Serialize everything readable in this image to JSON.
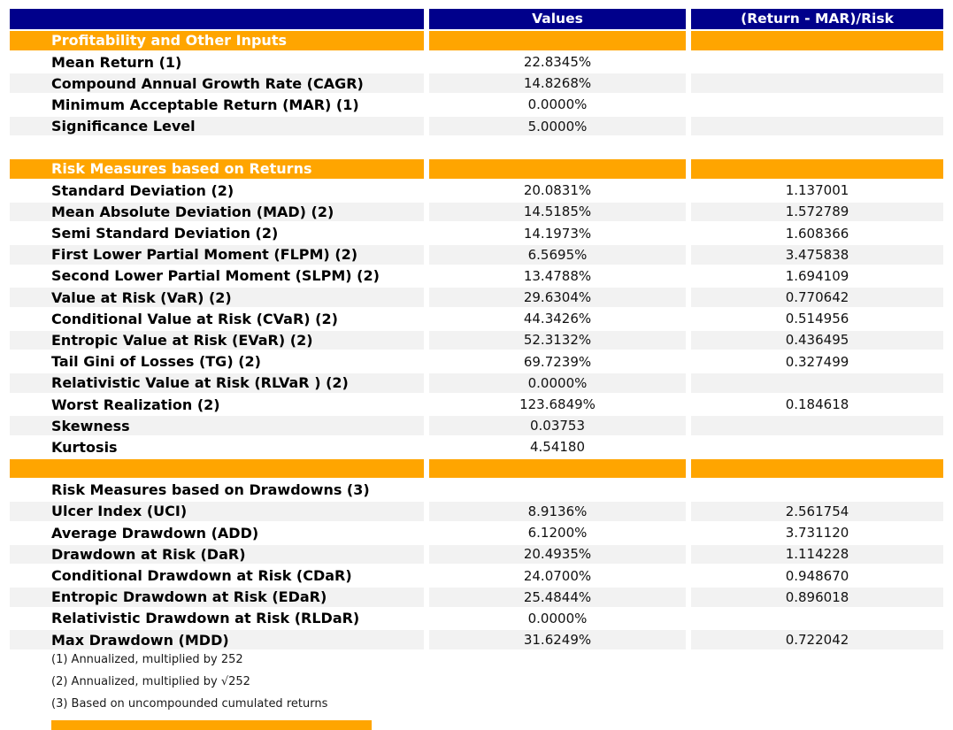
{
  "chart_data": {
    "type": "table",
    "title": "Portfolio risk measures table",
    "columns": [
      "",
      "Values",
      "(Return - MAR)/Risk"
    ],
    "rows": [
      {
        "kind": "section",
        "label": "Profitability and Other Inputs",
        "value": "",
        "ratio": "",
        "shade": false
      },
      {
        "kind": "data",
        "label": "Mean Return (1)",
        "value": "22.8345%",
        "ratio": "",
        "shade": false
      },
      {
        "kind": "data",
        "label": "Compound Annual Growth Rate (CAGR)",
        "value": "14.8268%",
        "ratio": "",
        "shade": true
      },
      {
        "kind": "data",
        "label": "Minimum Acceptable Return (MAR) (1)",
        "value": "0.0000%",
        "ratio": "",
        "shade": false
      },
      {
        "kind": "data",
        "label": "Significance Level",
        "value": "5.0000%",
        "ratio": "",
        "shade": true
      },
      {
        "kind": "blank",
        "label": "",
        "value": "",
        "ratio": "",
        "shade": false
      },
      {
        "kind": "section",
        "label": "Risk Measures based on Returns",
        "value": "",
        "ratio": "",
        "shade": false
      },
      {
        "kind": "data",
        "label": "Standard Deviation (2)",
        "value": "20.0831%",
        "ratio": "1.137001",
        "shade": false
      },
      {
        "kind": "data",
        "label": "Mean Absolute Deviation (MAD) (2)",
        "value": "14.5185%",
        "ratio": "1.572789",
        "shade": true
      },
      {
        "kind": "data",
        "label": "Semi Standard Deviation (2)",
        "value": "14.1973%",
        "ratio": "1.608366",
        "shade": false
      },
      {
        "kind": "data",
        "label": "First Lower Partial Moment (FLPM) (2)",
        "value": "6.5695%",
        "ratio": "3.475838",
        "shade": true
      },
      {
        "kind": "data",
        "label": "Second Lower Partial Moment (SLPM) (2)",
        "value": "13.4788%",
        "ratio": "1.694109",
        "shade": false
      },
      {
        "kind": "data",
        "label": "Value at Risk (VaR) (2)",
        "value": "29.6304%",
        "ratio": "0.770642",
        "shade": true
      },
      {
        "kind": "data",
        "label": "Conditional Value at Risk (CVaR) (2)",
        "value": "44.3426%",
        "ratio": "0.514956",
        "shade": false
      },
      {
        "kind": "data",
        "label": "Entropic Value at Risk (EVaR) (2)",
        "value": "52.3132%",
        "ratio": "0.436495",
        "shade": true
      },
      {
        "kind": "data",
        "label": "Tail Gini of Losses (TG) (2)",
        "value": "69.7239%",
        "ratio": "0.327499",
        "shade": false
      },
      {
        "kind": "data",
        "label": "Relativistic Value at Risk (RLVaR ) (2)",
        "value": "0.0000%",
        "ratio": "",
        "shade": true
      },
      {
        "kind": "data",
        "label": "Worst Realization (2)",
        "value": "123.6849%",
        "ratio": "0.184618",
        "shade": false
      },
      {
        "kind": "data",
        "label": "Skewness",
        "value": "0.03753",
        "ratio": "",
        "shade": true
      },
      {
        "kind": "data",
        "label": "Kurtosis",
        "value": "4.54180",
        "ratio": "",
        "shade": false
      },
      {
        "kind": "orange_spacer",
        "label": "",
        "value": "",
        "ratio": "",
        "shade": false
      },
      {
        "kind": "subtitle",
        "label": "Risk Measures based on Drawdowns (3)",
        "value": "",
        "ratio": "",
        "shade": false
      },
      {
        "kind": "data",
        "label": "Ulcer Index (UCI)",
        "value": "8.9136%",
        "ratio": "2.561754",
        "shade": true
      },
      {
        "kind": "data",
        "label": "Average Drawdown (ADD)",
        "value": "6.1200%",
        "ratio": "3.731120",
        "shade": false
      },
      {
        "kind": "data",
        "label": "Drawdown at Risk (DaR)",
        "value": "20.4935%",
        "ratio": "1.114228",
        "shade": true
      },
      {
        "kind": "data",
        "label": "Conditional Drawdown at Risk (CDaR)",
        "value": "24.0700%",
        "ratio": "0.948670",
        "shade": false
      },
      {
        "kind": "data",
        "label": "Entropic Drawdown at Risk (EDaR)",
        "value": "25.4844%",
        "ratio": "0.896018",
        "shade": true
      },
      {
        "kind": "data",
        "label": "Relativistic Drawdown at Risk (RLDaR)",
        "value": "0.0000%",
        "ratio": "",
        "shade": false
      },
      {
        "kind": "data",
        "label": "Max Drawdown (MDD)",
        "value": "31.6249%",
        "ratio": "0.722042",
        "shade": true
      }
    ],
    "footnotes": [
      "(1) Annualized, multiplied by 252",
      "(2) Annualized, multiplied by √252",
      "(3) Based on uncompounded cumulated returns"
    ]
  },
  "colors": {
    "header_bg": "#00008B",
    "header_text": "#FFFFFF",
    "section_bg": "#FFA500",
    "section_text": "#FFFFFF",
    "stripe_bg": "#F2F2F2",
    "body_text": "#000000"
  }
}
